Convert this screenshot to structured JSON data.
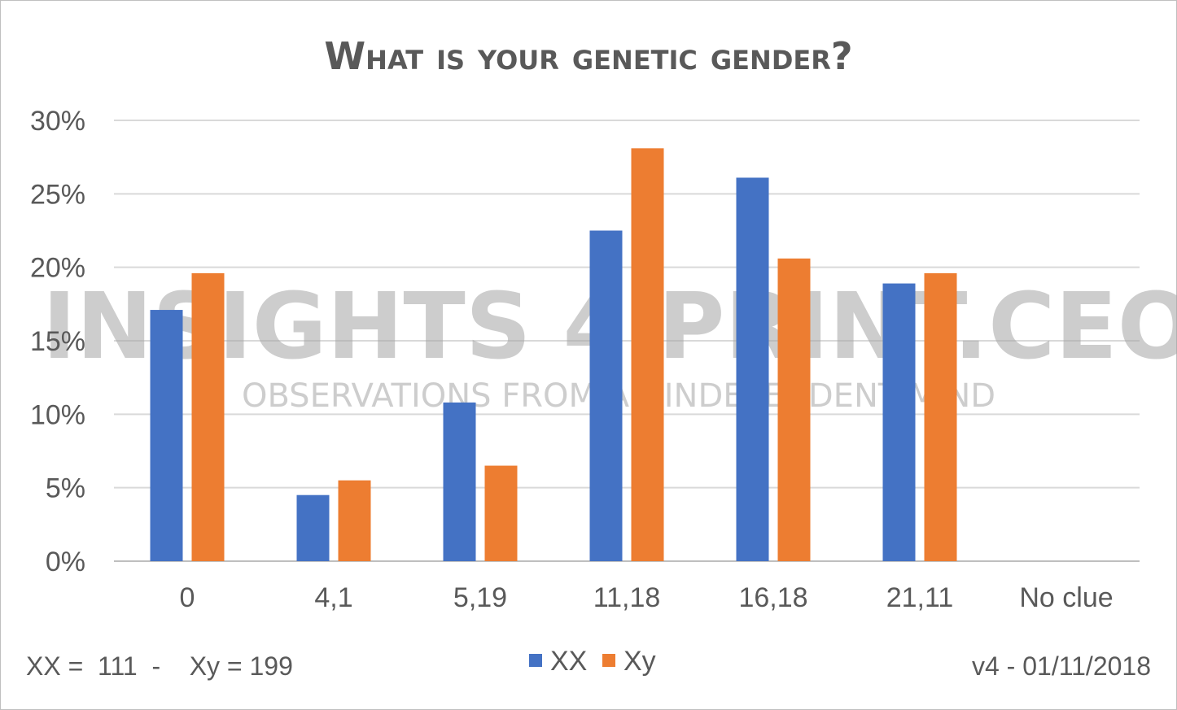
{
  "chart_data": {
    "type": "bar",
    "title": "What is your genetic gender?",
    "categories": [
      "0",
      "4,1",
      "5,19",
      "11,18",
      "16,18",
      "21,11",
      "No clue"
    ],
    "series": [
      {
        "name": "XX",
        "color": "#4472c4",
        "values": [
          17.1,
          4.5,
          10.8,
          22.5,
          26.1,
          18.9,
          0
        ]
      },
      {
        "name": "Xy",
        "color": "#ed7d31",
        "values": [
          19.6,
          5.5,
          6.5,
          28.1,
          20.6,
          19.6,
          0
        ]
      }
    ],
    "y_ticks": [
      "0%",
      "5%",
      "10%",
      "15%",
      "20%",
      "25%",
      "30%"
    ],
    "ylim": [
      0,
      30
    ],
    "grid": true,
    "legend_position": "bottom-center",
    "watermark": {
      "line1": "INSIGHTS 4 PRINT.CEO",
      "line2": "OBSERVATIONS FROM AN INDEPENDENT MIND"
    }
  },
  "footer": {
    "left": "XX =  111  -    Xy = 199",
    "right": "v4 - 01/11/2018"
  }
}
